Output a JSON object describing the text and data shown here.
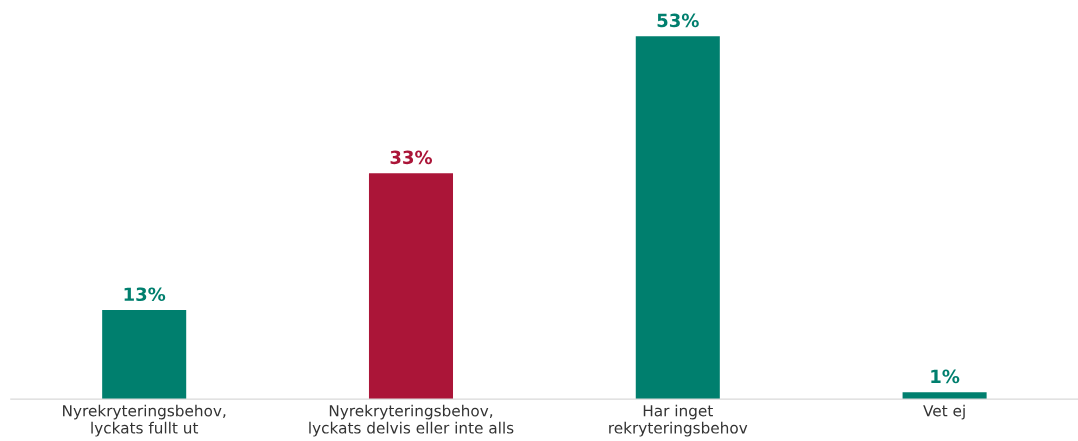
{
  "chart_data": {
    "type": "bar",
    "categories": [
      "Nyrekryteringsbehov,\nlyckats fullt ut",
      "Nyrekryteringsbehov,\nlyckats delvis eller inte alls",
      "Har inget\nrekryteringsbehov",
      "Vet ej"
    ],
    "values": [
      13,
      33,
      53,
      1
    ],
    "colors": [
      "#007f6e",
      "#ab1538",
      "#007f6e",
      "#007f6e"
    ],
    "value_labels": [
      "13%",
      "33%",
      "53%",
      "1%"
    ],
    "grid": false,
    "legend": false,
    "tick_labels": "x"
  }
}
